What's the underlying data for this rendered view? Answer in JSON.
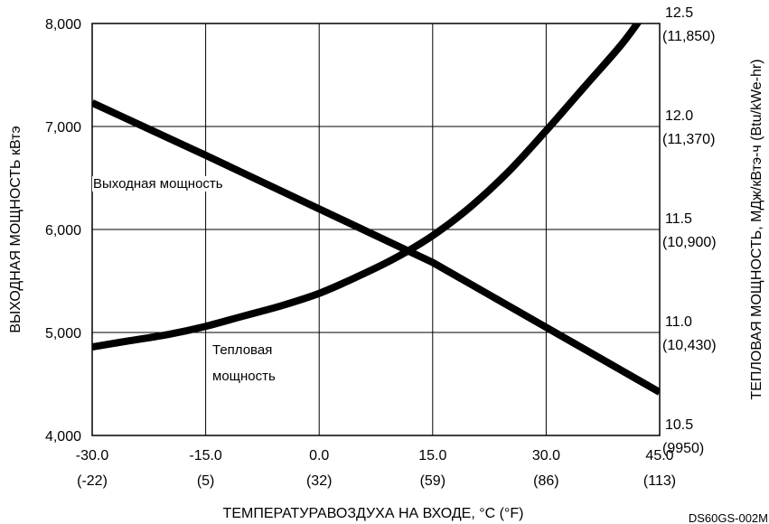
{
  "chart_data": {
    "type": "line",
    "xlabel": "ТЕМПЕРАТУРАВОЗДУХА НА ВХОДЕ, °C (°F)",
    "ylabel": "ВЫХОДНАЯ МОЩНОСТЬ кВтэ",
    "ylabel_right": "ТЕПЛОВАЯ МОЩНОСТЬ, МДж/кВтэ-ч (Btu/kWe-hr)",
    "xlim": [
      -30,
      45
    ],
    "ylim": [
      4000,
      8000
    ],
    "ylim_right": [
      10.5,
      12.5
    ],
    "grid": true,
    "x_ticks": [
      {
        "value": -30,
        "label": "-30.0",
        "sub": "(-22)"
      },
      {
        "value": -15,
        "label": "-15.0",
        "sub": "(5)"
      },
      {
        "value": 0,
        "label": "0.0",
        "sub": "(32)"
      },
      {
        "value": 15,
        "label": "15.0",
        "sub": "(59)"
      },
      {
        "value": 30,
        "label": "30.0",
        "sub": "(86)"
      },
      {
        "value": 45,
        "label": "45.0",
        "sub": "(113)"
      }
    ],
    "y_ticks": [
      {
        "value": 4000,
        "label": "4,000"
      },
      {
        "value": 5000,
        "label": "5,000"
      },
      {
        "value": 6000,
        "label": "6,000"
      },
      {
        "value": 7000,
        "label": "7,000"
      },
      {
        "value": 8000,
        "label": "8,000"
      }
    ],
    "y_right_ticks": [
      {
        "value": 10.5,
        "label": "10.5",
        "sub": "(9950)"
      },
      {
        "value": 11.0,
        "label": "11.0",
        "sub": "(10,430)"
      },
      {
        "value": 11.5,
        "label": "11.5",
        "sub": "(10,900)"
      },
      {
        "value": 12.0,
        "label": "12.0",
        "sub": "(11,370)"
      },
      {
        "value": 12.5,
        "label": "12.5",
        "sub": "(11,850)"
      }
    ],
    "series": [
      {
        "name": "Выходная мощность",
        "axis": "left",
        "x": [
          -30,
          -15,
          0,
          15,
          30,
          45
        ],
        "y": [
          7230,
          6720,
          6200,
          5680,
          5050,
          4420
        ]
      },
      {
        "name": "Тепловая мощность",
        "axis": "right",
        "x": [
          -30,
          -25,
          -20,
          -15,
          -10,
          -5,
          0,
          5,
          10,
          15,
          20,
          25,
          30,
          35,
          40,
          43
        ],
        "y": [
          10.93,
          10.96,
          10.99,
          11.03,
          11.08,
          11.13,
          11.19,
          11.27,
          11.36,
          11.47,
          11.61,
          11.78,
          11.98,
          12.19,
          12.4,
          12.55
        ]
      }
    ],
    "annotations": [
      {
        "text": "Выходная мощность",
        "series": 0
      },
      {
        "text": "Тепловая",
        "series": 1
      },
      {
        "text": "мощность",
        "series": 1
      }
    ],
    "footnote": "DS60GS-002M"
  }
}
